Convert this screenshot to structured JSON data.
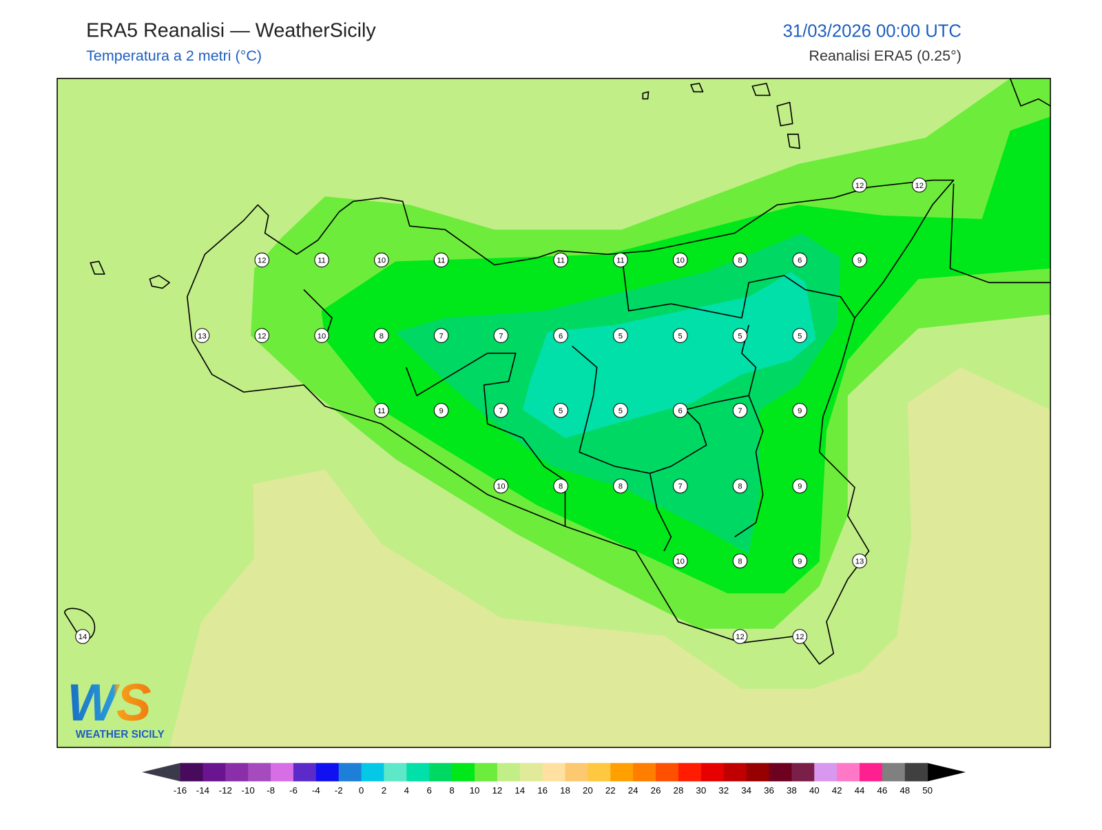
{
  "header": {
    "title": "ERA5 Reanalisi — WeatherSicily",
    "subtitle": "Temperatura a 2 metri (°C)",
    "datetime": "31/03/2026 00:00 UTC",
    "source": "Reanalisi ERA5 (0.25°)"
  },
  "stations": {
    "rows": [
      [
        null,
        null,
        null,
        null,
        null,
        null,
        null,
        null,
        null,
        null,
        null,
        null,
        null,
        12,
        12
      ],
      [
        null,
        null,
        null,
        12,
        11,
        10,
        11,
        null,
        11,
        11,
        10,
        8,
        6,
        9,
        null
      ],
      [
        null,
        null,
        13,
        12,
        10,
        8,
        7,
        7,
        6,
        5,
        5,
        5,
        5,
        null,
        null
      ],
      [
        null,
        null,
        null,
        null,
        null,
        11,
        9,
        7,
        5,
        5,
        6,
        7,
        9,
        null,
        null
      ],
      [
        null,
        null,
        null,
        null,
        null,
        null,
        null,
        10,
        8,
        8,
        7,
        8,
        9,
        null,
        null
      ],
      [
        null,
        null,
        null,
        null,
        null,
        null,
        null,
        null,
        null,
        null,
        10,
        8,
        9,
        13,
        null
      ],
      [
        14,
        null,
        null,
        null,
        null,
        null,
        null,
        null,
        null,
        null,
        null,
        12,
        12,
        null,
        null
      ]
    ]
  },
  "colorbar": {
    "ticks": [
      -16,
      -14,
      -12,
      -10,
      -8,
      -6,
      -4,
      -2,
      0,
      2,
      4,
      6,
      8,
      10,
      12,
      14,
      16,
      18,
      20,
      22,
      24,
      26,
      28,
      30,
      32,
      34,
      36,
      38,
      40,
      42,
      44,
      46,
      48,
      50
    ],
    "colors": [
      "#470a5c",
      "#6a1490",
      "#8a2fa8",
      "#a64bbd",
      "#d76ee6",
      "#5b2ac9",
      "#1010f0",
      "#1e7fd8",
      "#05c8e6",
      "#5ee8c8",
      "#00e0a8",
      "#00d864",
      "#00e81a",
      "#6cec3c",
      "#c2ee88",
      "#e0ea98",
      "#ffe0a0",
      "#fcc870",
      "#ffc840",
      "#ffa000",
      "#ff7e00",
      "#ff5000",
      "#ff1c00",
      "#e60000",
      "#c00000",
      "#980000",
      "#6e0020",
      "#7a2048",
      "#d898f0",
      "#ff78c8",
      "#ff2090",
      "#808080",
      "#404040"
    ],
    "under_color": "#3a3a4a",
    "over_color": "#000000"
  },
  "logo": {
    "mark": "WS",
    "text": "WEATHER SICILY"
  }
}
